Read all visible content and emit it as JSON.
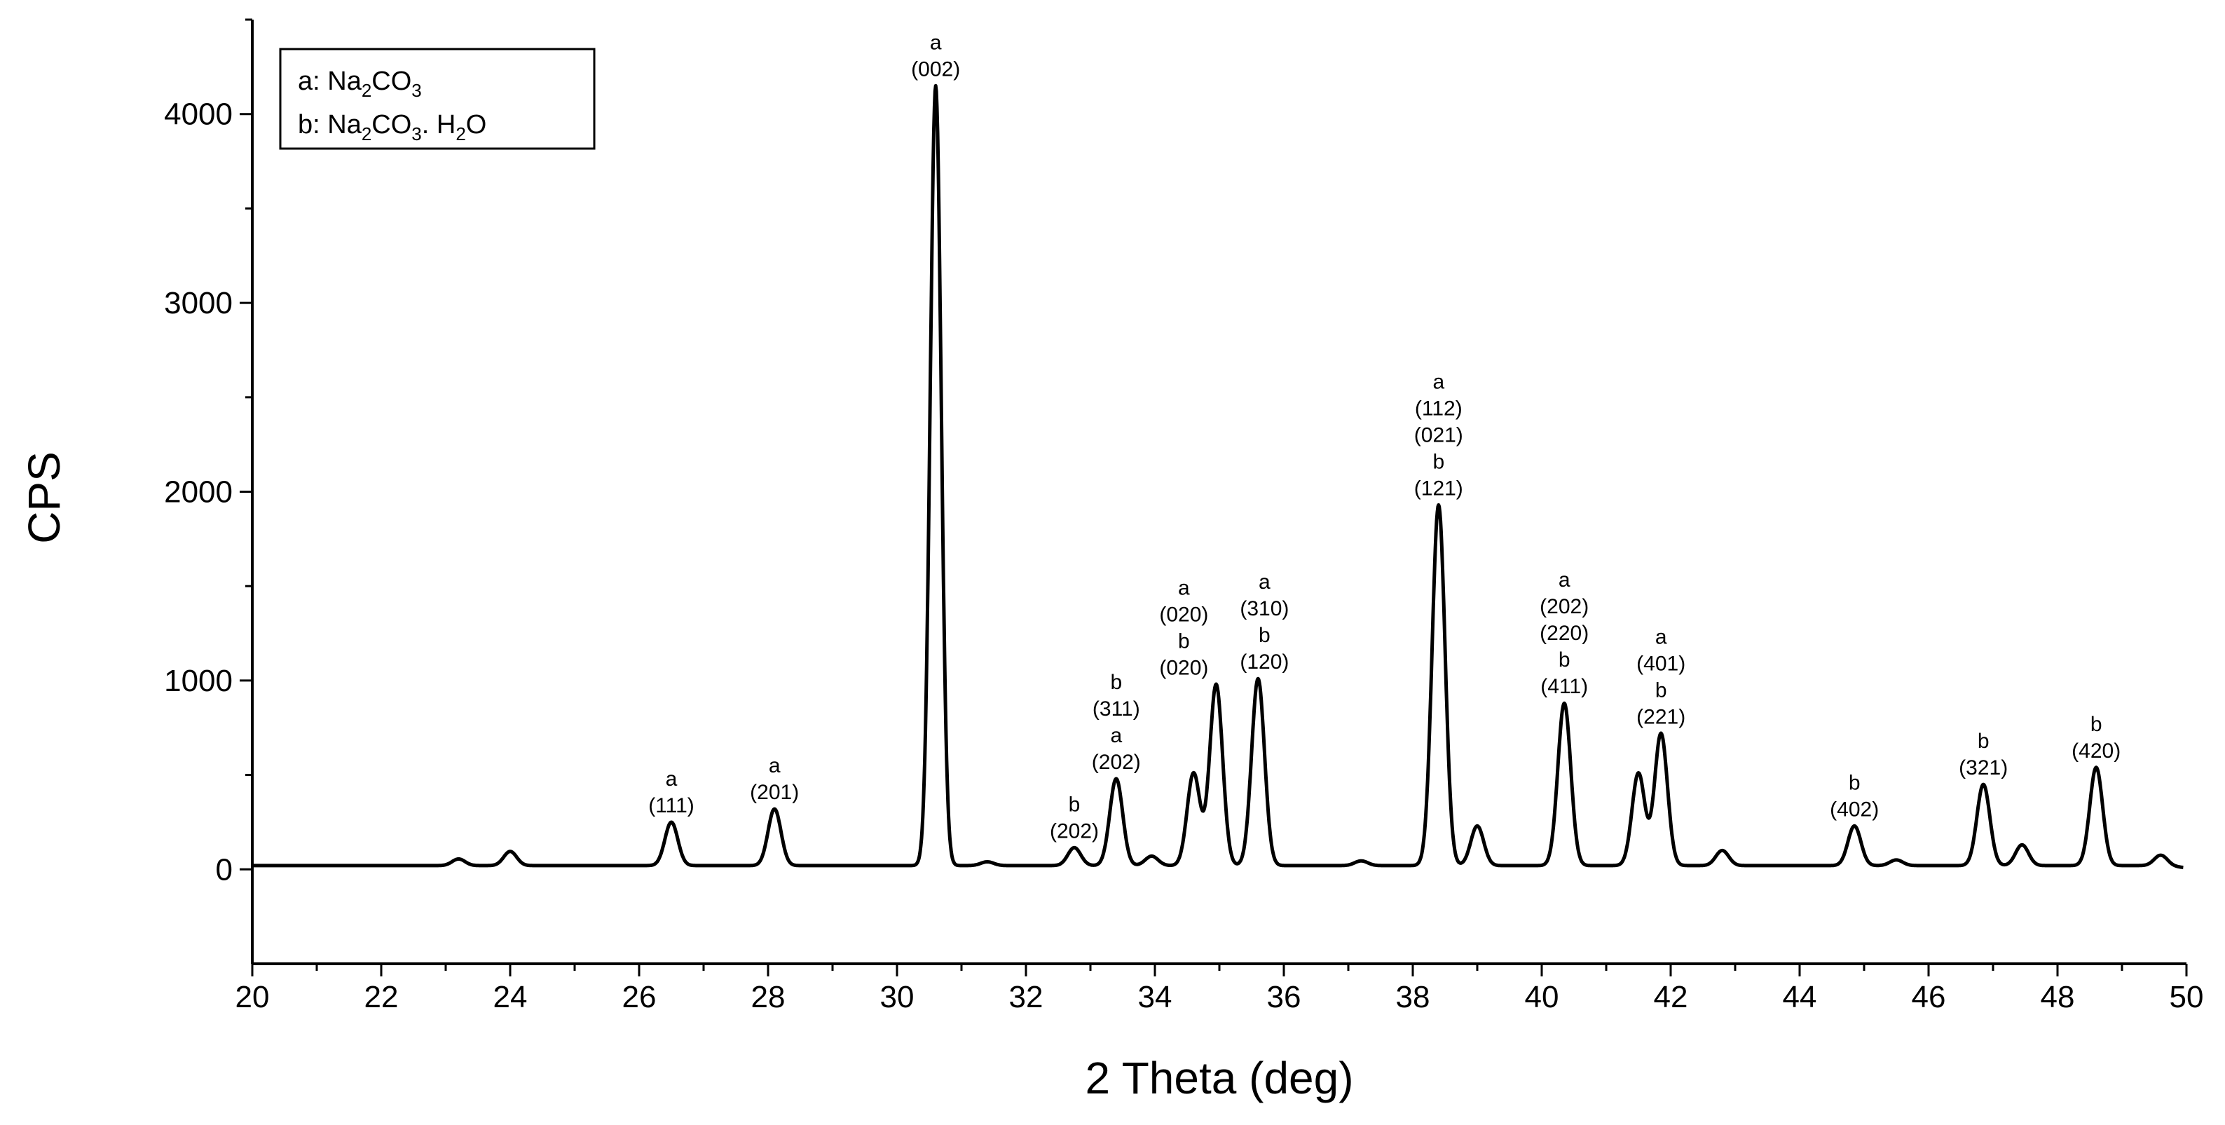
{
  "chart_data": {
    "type": "line",
    "title": "",
    "xlabel": "2 Theta (deg)",
    "ylabel": "CPS",
    "xlim": [
      20,
      50
    ],
    "ylim": [
      -500,
      4500
    ],
    "xticks": [
      "20",
      "22",
      "24",
      "26",
      "28",
      "30",
      "32",
      "34",
      "36",
      "38",
      "40",
      "42",
      "44",
      "46",
      "48",
      "50"
    ],
    "yticks": [
      "0",
      "1000",
      "2000",
      "3000",
      "4000"
    ],
    "x_tick_values": [
      20,
      22,
      24,
      26,
      28,
      30,
      32,
      34,
      36,
      38,
      40,
      42,
      44,
      46,
      48,
      50
    ],
    "y_tick_values": [
      0,
      1000,
      2000,
      3000,
      4000
    ],
    "grid": false,
    "legend": {
      "placement": "top-left",
      "entries": [
        {
          "prefix": "a: Na",
          "s1": "2",
          "mid": "CO",
          "s2": "3",
          "suffix": ""
        },
        {
          "prefix": "b: Na",
          "s1": "2",
          "mid": "CO",
          "s2": "3",
          "suffix": ". H",
          "s3": "2",
          "end": "O"
        }
      ]
    },
    "baseline": 20,
    "series": [
      {
        "peaks": [
          {
            "x": 23.2,
            "y": 55
          },
          {
            "x": 24.0,
            "y": 95
          },
          {
            "x": 26.5,
            "y": 250
          },
          {
            "x": 28.1,
            "y": 320
          },
          {
            "x": 30.6,
            "y": 4150
          },
          {
            "x": 31.4,
            "y": 40
          },
          {
            "x": 32.75,
            "y": 115
          },
          {
            "x": 33.4,
            "y": 480
          },
          {
            "x": 33.95,
            "y": 70
          },
          {
            "x": 34.6,
            "y": 510
          },
          {
            "x": 34.95,
            "y": 980
          },
          {
            "x": 35.6,
            "y": 1010
          },
          {
            "x": 37.2,
            "y": 45
          },
          {
            "x": 38.4,
            "y": 1930
          },
          {
            "x": 39.0,
            "y": 230
          },
          {
            "x": 40.35,
            "y": 880
          },
          {
            "x": 41.5,
            "y": 510
          },
          {
            "x": 41.85,
            "y": 720
          },
          {
            "x": 42.8,
            "y": 100
          },
          {
            "x": 44.85,
            "y": 230
          },
          {
            "x": 45.5,
            "y": 50
          },
          {
            "x": 46.85,
            "y": 450
          },
          {
            "x": 47.45,
            "y": 130
          },
          {
            "x": 48.6,
            "y": 540
          },
          {
            "x": 49.6,
            "y": 75
          }
        ]
      }
    ],
    "annotations": [
      {
        "x": 26.5,
        "y": 250,
        "lines": [
          "a",
          "(111)"
        ]
      },
      {
        "x": 28.1,
        "y": 320,
        "lines": [
          "a",
          "(201)"
        ]
      },
      {
        "x": 30.6,
        "y": 4150,
        "lines": [
          "a",
          "(002)"
        ]
      },
      {
        "x": 32.75,
        "y": 115,
        "lines": [
          "b",
          "(202)"
        ]
      },
      {
        "x": 33.4,
        "y": 480,
        "lines": [
          "b",
          "(311)",
          "a",
          "(202)"
        ]
      },
      {
        "x": 34.95,
        "y": 980,
        "lines": [
          "a",
          "(020)",
          "b",
          "(020)"
        ],
        "dx": -0.5
      },
      {
        "x": 35.6,
        "y": 1010,
        "lines": [
          "a",
          "(310)",
          "b",
          "(120)"
        ],
        "dx": 0.1
      },
      {
        "x": 38.4,
        "y": 1930,
        "lines": [
          "a",
          "(112)",
          "(021)",
          "b",
          "(121)"
        ]
      },
      {
        "x": 40.35,
        "y": 880,
        "lines": [
          "a",
          "(202)",
          "(220)",
          "b",
          "(411)"
        ]
      },
      {
        "x": 41.85,
        "y": 720,
        "lines": [
          "a",
          "(401)",
          "b",
          "(221)"
        ]
      },
      {
        "x": 44.85,
        "y": 230,
        "lines": [
          "b",
          "(402)"
        ]
      },
      {
        "x": 46.85,
        "y": 450,
        "lines": [
          "b",
          "(321)"
        ]
      },
      {
        "x": 48.6,
        "y": 540,
        "lines": [
          "b",
          "(420)"
        ]
      }
    ]
  }
}
